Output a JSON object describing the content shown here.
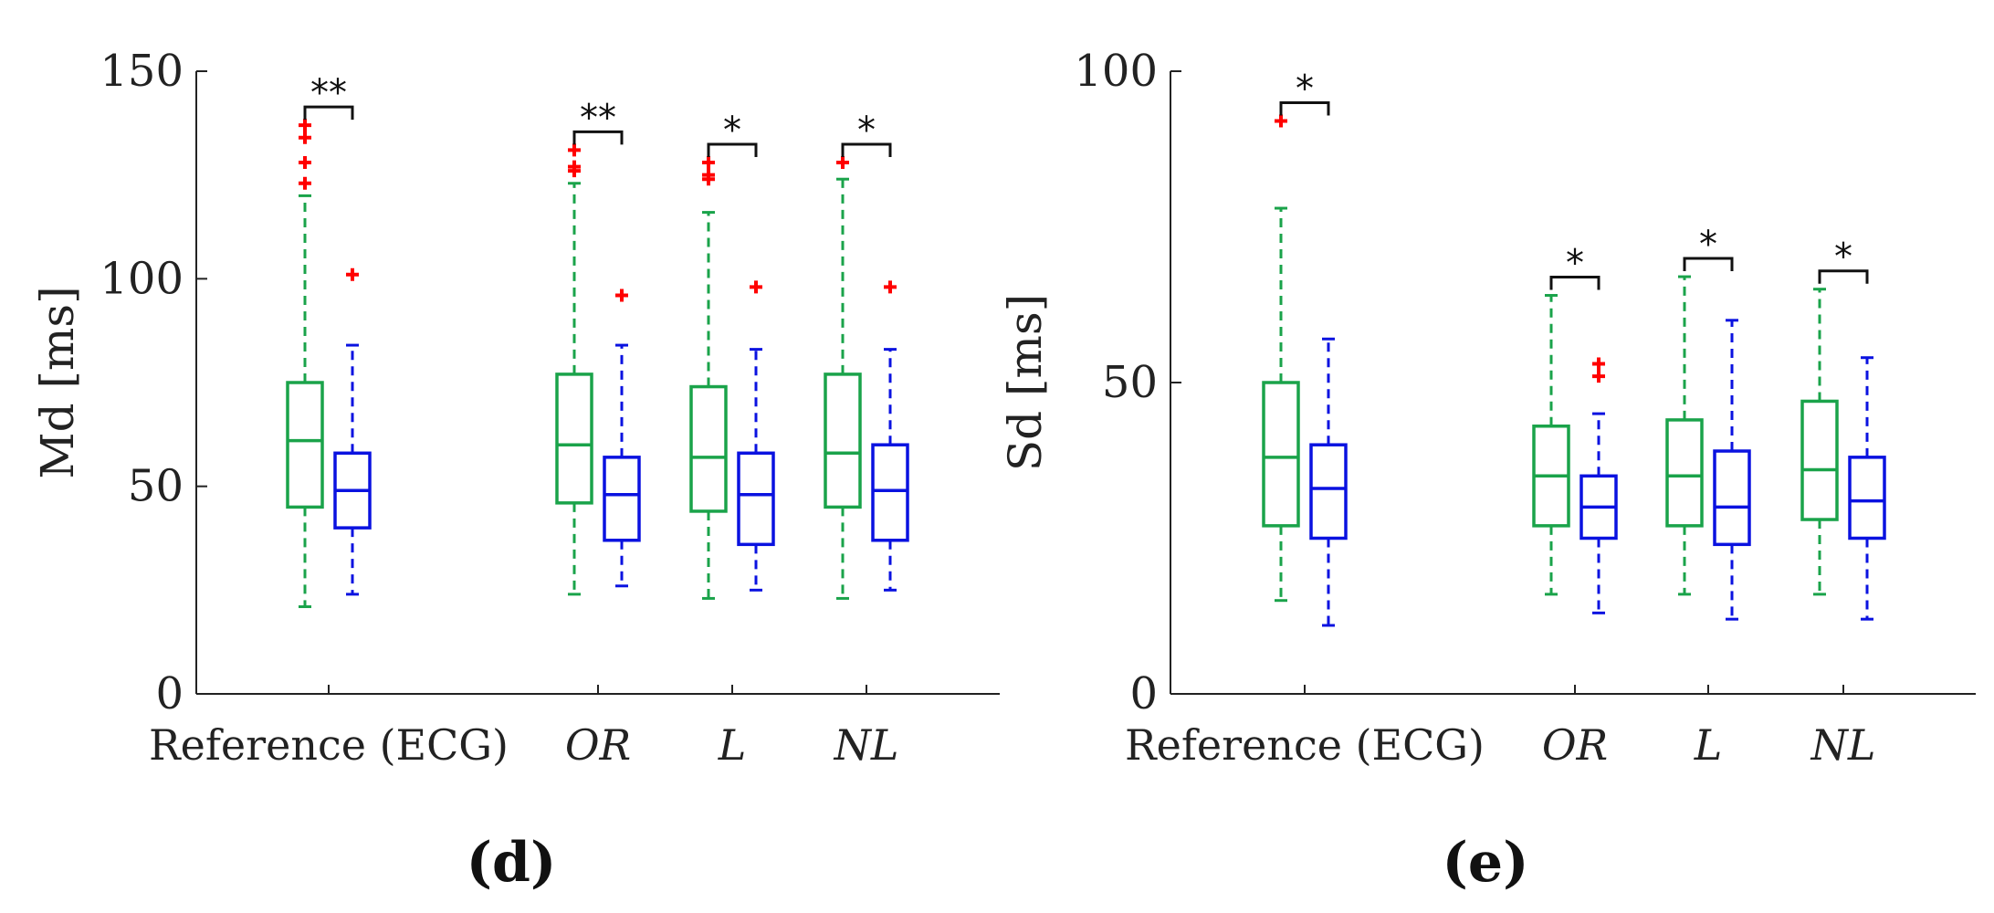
{
  "chart_data": [
    {
      "type": "box",
      "panel_label": "(d)",
      "ylabel": "Md [ms]",
      "ylim": [
        0,
        150
      ],
      "yticks": [
        0,
        50,
        100,
        150
      ],
      "categories": [
        "Reference (ECG)",
        "OR",
        "L",
        "NL"
      ],
      "series_colors": [
        "#1aa34a",
        "#0a12e0"
      ],
      "outlier_color": "#ff0000",
      "groups": [
        {
          "category": "Reference (ECG)",
          "significance": "**",
          "boxes": [
            {
              "whisker_low": 21,
              "q1": 45,
              "median": 61,
              "q3": 75,
              "whisker_high": 120,
              "outliers": [
                123,
                128,
                134,
                137
              ]
            },
            {
              "whisker_low": 24,
              "q1": 40,
              "median": 49,
              "q3": 58,
              "whisker_high": 84,
              "outliers": [
                101
              ]
            }
          ]
        },
        {
          "category": "OR",
          "significance": "**",
          "boxes": [
            {
              "whisker_low": 24,
              "q1": 46,
              "median": 60,
              "q3": 77,
              "whisker_high": 123,
              "outliers": [
                126,
                127,
                131
              ]
            },
            {
              "whisker_low": 26,
              "q1": 37,
              "median": 48,
              "q3": 57,
              "whisker_high": 84,
              "outliers": [
                96
              ]
            }
          ]
        },
        {
          "category": "L",
          "significance": "*",
          "boxes": [
            {
              "whisker_low": 23,
              "q1": 44,
              "median": 57,
              "q3": 74,
              "whisker_high": 116,
              "outliers": [
                124,
                125,
                128
              ]
            },
            {
              "whisker_low": 25,
              "q1": 36,
              "median": 48,
              "q3": 58,
              "whisker_high": 83,
              "outliers": [
                98
              ]
            }
          ]
        },
        {
          "category": "NL",
          "significance": "*",
          "boxes": [
            {
              "whisker_low": 23,
              "q1": 45,
              "median": 58,
              "q3": 77,
              "whisker_high": 124,
              "outliers": [
                128
              ]
            },
            {
              "whisker_low": 25,
              "q1": 37,
              "median": 49,
              "q3": 60,
              "whisker_high": 83,
              "outliers": [
                98
              ]
            }
          ]
        }
      ]
    },
    {
      "type": "box",
      "panel_label": "(e)",
      "ylabel": "Sd [ms]",
      "ylim": [
        0,
        100
      ],
      "yticks": [
        0,
        50,
        100
      ],
      "categories": [
        "Reference (ECG)",
        "OR",
        "L",
        "NL"
      ],
      "series_colors": [
        "#1aa34a",
        "#0a12e0"
      ],
      "outlier_color": "#ff0000",
      "groups": [
        {
          "category": "Reference (ECG)",
          "significance": "*",
          "boxes": [
            {
              "whisker_low": 15,
              "q1": 27,
              "median": 38,
              "q3": 50,
              "whisker_high": 78,
              "outliers": [
                92
              ]
            },
            {
              "whisker_low": 11,
              "q1": 25,
              "median": 33,
              "q3": 40,
              "whisker_high": 57,
              "outliers": []
            }
          ]
        },
        {
          "category": "OR",
          "significance": "*",
          "boxes": [
            {
              "whisker_low": 16,
              "q1": 27,
              "median": 35,
              "q3": 43,
              "whisker_high": 64,
              "outliers": []
            },
            {
              "whisker_low": 13,
              "q1": 25,
              "median": 30,
              "q3": 35,
              "whisker_high": 45,
              "outliers": [
                51,
                53
              ]
            }
          ]
        },
        {
          "category": "L",
          "significance": "*",
          "boxes": [
            {
              "whisker_low": 16,
              "q1": 27,
              "median": 35,
              "q3": 44,
              "whisker_high": 67,
              "outliers": []
            },
            {
              "whisker_low": 12,
              "q1": 24,
              "median": 30,
              "q3": 39,
              "whisker_high": 60,
              "outliers": []
            }
          ]
        },
        {
          "category": "NL",
          "significance": "*",
          "boxes": [
            {
              "whisker_low": 16,
              "q1": 28,
              "median": 36,
              "q3": 47,
              "whisker_high": 65,
              "outliers": []
            },
            {
              "whisker_low": 12,
              "q1": 25,
              "median": 31,
              "q3": 38,
              "whisker_high": 54,
              "outliers": []
            }
          ]
        }
      ]
    }
  ]
}
